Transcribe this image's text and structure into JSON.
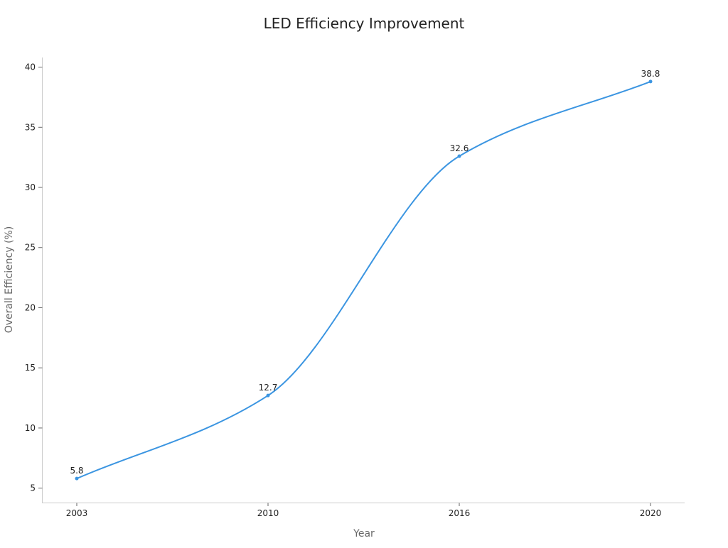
{
  "chart_data": {
    "type": "line",
    "title": "LED Efficiency Improvement",
    "xlabel": "Year",
    "ylabel": "Overall Efficiency (%)",
    "x": [
      "2003",
      "2010",
      "2016",
      "2020"
    ],
    "series": [
      {
        "values": [
          5.8,
          12.7,
          32.6,
          38.8
        ],
        "color": "#3b95e1"
      }
    ],
    "data_labels": [
      "5.8",
      "12.7",
      "32.6",
      "38.8"
    ],
    "y_ticks": [
      5,
      10,
      15,
      20,
      25,
      30,
      35,
      40
    ],
    "y_tick_labels": [
      "5",
      "10",
      "15",
      "20",
      "25",
      "30",
      "35",
      "40"
    ],
    "ylim": [
      3.8,
      40.8
    ],
    "grid": false,
    "legend": "none",
    "smooth": true
  }
}
